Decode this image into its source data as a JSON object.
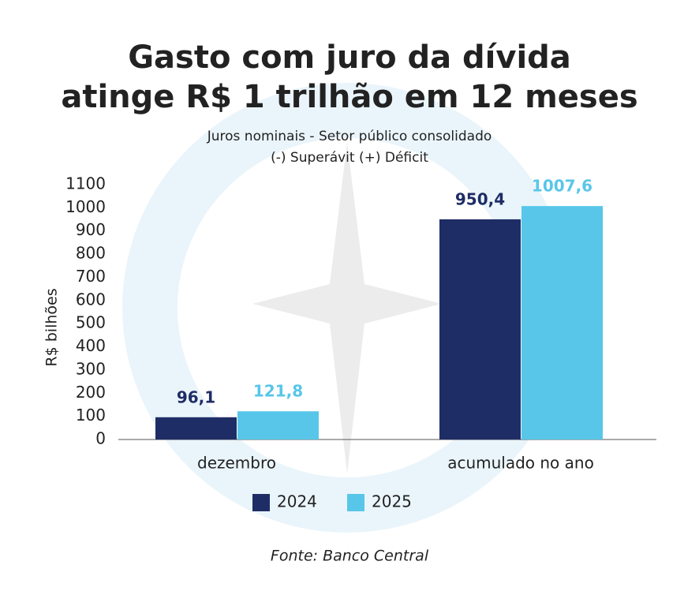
{
  "chart_data": {
    "type": "bar",
    "title": [
      "Gasto com juro da dívida",
      "atinge R$ 1 trilhão em 12 meses"
    ],
    "subtitle": [
      "Juros nominais - Setor público consolidado",
      "(-) Superávit (+) Déficit"
    ],
    "y_label": "R$ bilhões",
    "categories": [
      "dezembro",
      "acumulado no ano"
    ],
    "series": [
      {
        "name": "2024",
        "color": "#1f2d66",
        "values": [
          96.1,
          950.4
        ],
        "value_labels": [
          "96,1",
          "950,4"
        ]
      },
      {
        "name": "2025",
        "color": "#58c6e9",
        "values": [
          121.8,
          1007.6
        ],
        "value_labels": [
          "121,8",
          "1007,6"
        ]
      }
    ],
    "ylim": [
      0,
      1100
    ],
    "yticks": [
      0,
      100,
      200,
      300,
      400,
      500,
      600,
      700,
      800,
      900,
      1000,
      1100
    ],
    "grid": false,
    "legend": "bottom",
    "source": "Fonte: Banco Central"
  }
}
